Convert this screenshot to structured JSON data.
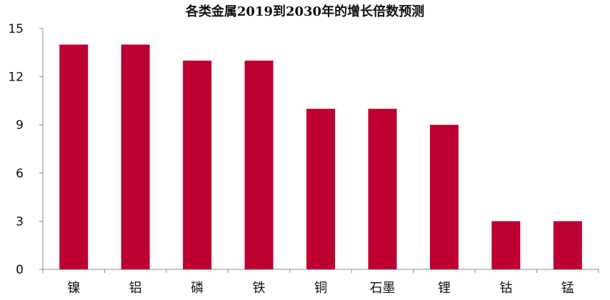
{
  "chart_data": {
    "type": "bar",
    "title": "各类金属2019到2030年的增长倍数预测",
    "categories": [
      "镍",
      "铝",
      "磷",
      "铁",
      "铜",
      "石墨",
      "锂",
      "钴",
      "锰"
    ],
    "values": [
      14,
      14,
      13,
      13,
      10,
      10,
      9,
      3,
      3
    ],
    "ylim": [
      0,
      15
    ],
    "yticks": [
      0,
      3,
      6,
      9,
      12,
      15
    ],
    "xlabel": "",
    "ylabel": "",
    "grid": false,
    "legend": "none",
    "colors": {
      "bar": "#BE0031",
      "axis": "#888888",
      "text": "#111111"
    }
  }
}
